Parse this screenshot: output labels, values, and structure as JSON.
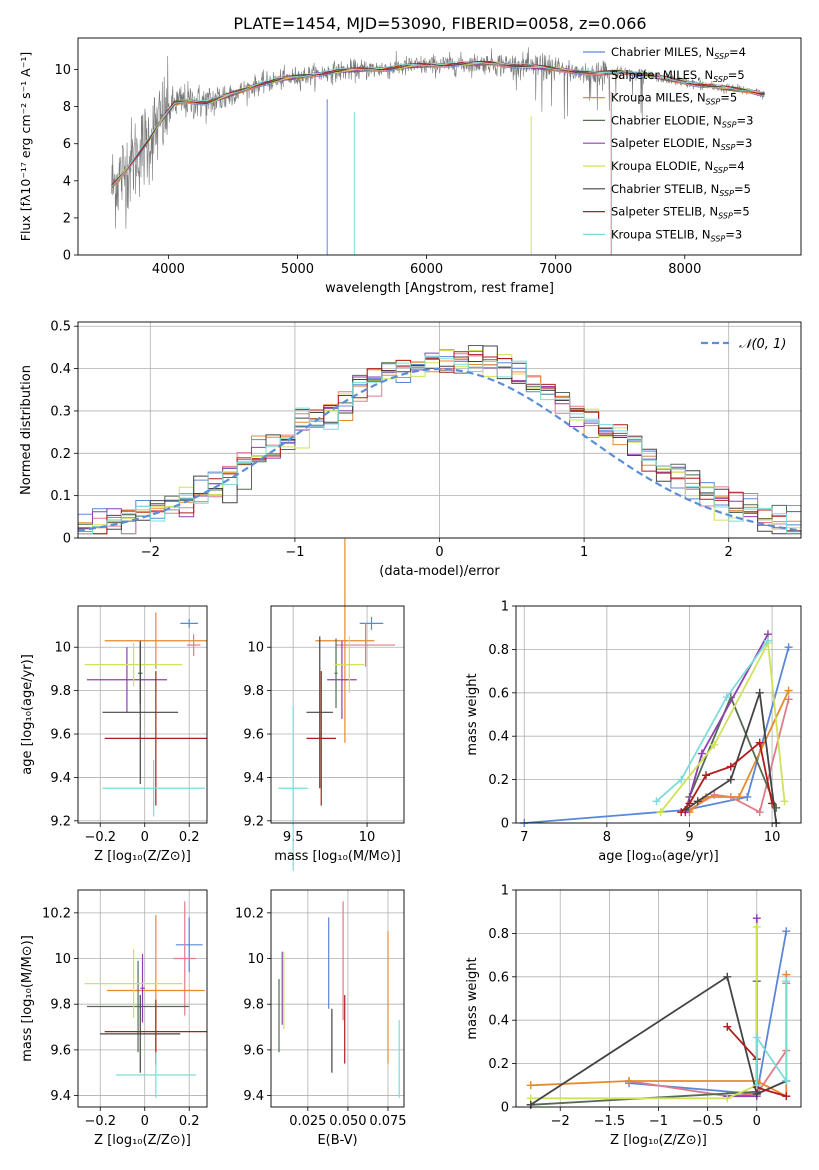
{
  "figure_title": "PLATE=1454, MJD=53090, FIBERID=0058, z=0.066",
  "colors": {
    "Chabrier MILES": "#5a87d8",
    "Salpeter MILES": "#e07b8a",
    "Kroupa MILES": "#e68a2e",
    "Chabrier ELODIE": "#556b55",
    "Salpeter ELODIE": "#8e3fb0",
    "Kroupa ELODIE": "#cfe25a",
    "Chabrier STELIB": "#444444",
    "Salpeter STELIB": "#b01c1c",
    "Kroupa STELIB": "#7fdada",
    "grid": "#b0b0b0",
    "spectrum": "#7a7a7a",
    "normal": "#5b8ed8"
  },
  "chart_data": [
    {
      "id": "spectrum",
      "type": "line",
      "xlabel": "wavelength [Angstrom, rest frame]",
      "ylabel": "Flux [fλ10⁻¹⁷ erg cm⁻² s⁻¹ A⁻¹]",
      "xlim": [
        3300,
        8900
      ],
      "ylim": [
        0,
        11.7
      ],
      "xticks": [
        4000,
        5000,
        6000,
        7000,
        8000
      ],
      "yticks": [
        0,
        2,
        4,
        6,
        8,
        10
      ],
      "grid": false,
      "legend_position": "top-right",
      "legend": [
        {
          "series": "Chabrier MILES",
          "label": "Chabrier MILES, N",
          "sub": "SSP",
          "tail": "=4"
        },
        {
          "series": "Salpeter MILES",
          "label": "Salpeter MILES, N",
          "sub": "SSP",
          "tail": "=5"
        },
        {
          "series": "Kroupa MILES",
          "label": "Kroupa MILES, N",
          "sub": "SSP",
          "tail": "=5"
        },
        {
          "series": "Chabrier ELODIE",
          "label": "Chabrier ELODIE, N",
          "sub": "SSP",
          "tail": "=3"
        },
        {
          "series": "Salpeter ELODIE",
          "label": "Salpeter ELODIE, N",
          "sub": "SSP",
          "tail": "=3"
        },
        {
          "series": "Kroupa ELODIE",
          "label": "Kroupa ELODIE, N",
          "sub": "SSP",
          "tail": "=4"
        },
        {
          "series": "Chabrier STELIB",
          "label": "Chabrier STELIB, N",
          "sub": "SSP",
          "tail": "=5"
        },
        {
          "series": "Salpeter STELIB",
          "label": "Salpeter STELIB, N",
          "sub": "SSP",
          "tail": "=5"
        },
        {
          "series": "Kroupa STELIB",
          "label": "Kroupa STELIB, N",
          "sub": "SSP",
          "tail": "=3"
        }
      ],
      "model_continuum": {
        "x": [
          3550,
          3650,
          3750,
          3850,
          3950,
          4050,
          4150,
          4300,
          4500,
          4700,
          4900,
          5100,
          5300,
          5500,
          5700,
          5900,
          6100,
          6300,
          6500,
          6700,
          6900,
          7100,
          7300,
          7500,
          7700,
          7900,
          8100,
          8300,
          8500,
          8600
        ],
        "y": [
          3.6,
          4.4,
          5.3,
          6.2,
          7.3,
          8.2,
          8.3,
          8.2,
          8.7,
          9.2,
          9.5,
          9.7,
          9.9,
          10.0,
          10.05,
          10.2,
          10.25,
          10.3,
          10.35,
          10.2,
          10.1,
          9.95,
          9.75,
          9.9,
          9.7,
          9.45,
          9.2,
          9.0,
          8.85,
          8.7
        ]
      },
      "spikes": [
        {
          "x": 5230,
          "y0": 0,
          "y1": 8.4,
          "series": "Chabrier MILES"
        },
        {
          "x": 5440,
          "y0": 0,
          "y1": 7.7,
          "series": "Kroupa STELIB"
        },
        {
          "x": 6810,
          "y0": 0,
          "y1": 7.5,
          "series": "Kroupa ELODIE"
        },
        {
          "x": 7430,
          "y0": 0,
          "y1": 8.8,
          "series": "Salpeter MILES"
        }
      ]
    },
    {
      "id": "residual_hist",
      "type": "line",
      "xlabel": "(data-model)/error",
      "ylabel": "Normed distribution",
      "xlim": [
        -2.5,
        2.5
      ],
      "ylim": [
        0,
        0.51
      ],
      "xticks": [
        -2,
        -1,
        0,
        1,
        2
      ],
      "yticks": [
        0.0,
        0.1,
        0.2,
        0.3,
        0.4,
        0.5
      ],
      "grid": true,
      "legend_position": "top-right",
      "legend": [
        {
          "label": "𝒩(0, 1)"
        }
      ],
      "bin_width": 0.1,
      "bin_start": -2.5,
      "normal_curve": {
        "mu": 0,
        "sigma": 1
      }
    },
    {
      "id": "age_vs_Z",
      "type": "scatter",
      "xlabel": "Z [log₁₀(Z/Z⊙)]",
      "ylabel": "age  [log₁₀(age/yr)]",
      "xlim": [
        -0.3,
        0.28
      ],
      "ylim": [
        9.19,
        10.19
      ],
      "xticks": [
        -0.2,
        0.0,
        0.2
      ],
      "yticks": [
        9.2,
        9.4,
        9.6,
        9.8,
        10.0
      ],
      "grid": true,
      "errorbars": [
        {
          "series": "Chabrier MILES",
          "x": 0.2,
          "xerr": 0.04,
          "y": 10.11,
          "yerr": 0.02
        },
        {
          "series": "Salpeter MILES",
          "x": 0.22,
          "xerr": 0.03,
          "y": 10.01,
          "yerr": 0.05
        },
        {
          "series": "Kroupa MILES",
          "x": 0.05,
          "xerr": 0.23,
          "y": 10.03,
          "yerr": 0.13
        },
        {
          "series": "Chabrier ELODIE",
          "x": -0.02,
          "xerr": 0.01,
          "y": 9.88,
          "yerr": 0.14
        },
        {
          "series": "Salpeter ELODIE",
          "x": -0.08,
          "xerr": 0.18,
          "y": 9.85,
          "yerr": 0.15
        },
        {
          "series": "Kroupa ELODIE",
          "x": -0.05,
          "xerr": 0.22,
          "y": 9.92,
          "yerr": 0.1
        },
        {
          "series": "Chabrier STELIB",
          "x": -0.02,
          "xerr": 0.17,
          "y": 9.7,
          "yerr": 0.33
        },
        {
          "series": "Salpeter STELIB",
          "x": 0.05,
          "xerr": 0.23,
          "y": 9.58,
          "yerr": 0.31
        },
        {
          "series": "Kroupa STELIB",
          "x": 0.04,
          "xerr": 0.23,
          "y": 9.35,
          "yerr": 0.13
        }
      ]
    },
    {
      "id": "age_vs_mass",
      "type": "scatter",
      "xlabel": "mass [log₁₀(M/M⊙)]",
      "ylabel": "",
      "xlim": [
        9.35,
        10.25
      ],
      "ylim": [
        9.19,
        10.19
      ],
      "xticks": [
        9.5,
        10.0
      ],
      "yticks": [
        9.2,
        9.4,
        9.6,
        9.8,
        10.0
      ],
      "grid": true,
      "errorbars": [
        {
          "series": "Chabrier MILES",
          "x": 10.03,
          "xerr": 0.08,
          "y": 10.11,
          "yerr": 0.03
        },
        {
          "series": "Salpeter MILES",
          "x": 9.99,
          "xerr": 0.2,
          "y": 10.01,
          "yerr": 0.1
        },
        {
          "series": "Kroupa MILES",
          "x": 9.85,
          "xerr": 0.2,
          "y": 10.03,
          "yerr": 0.47
        },
        {
          "series": "Chabrier ELODIE",
          "x": 9.79,
          "xerr": 0.01,
          "y": 9.88,
          "yerr": 0.16
        },
        {
          "series": "Salpeter ELODIE",
          "x": 9.83,
          "xerr": 0.1,
          "y": 9.85,
          "yerr": 0.18
        },
        {
          "series": "Kroupa ELODIE",
          "x": 9.88,
          "xerr": 0.1,
          "y": 9.92,
          "yerr": 0.13
        },
        {
          "series": "Chabrier STELIB",
          "x": 9.68,
          "xerr": 0.09,
          "y": 9.7,
          "yerr": 0.35
        },
        {
          "series": "Salpeter STELIB",
          "x": 9.69,
          "xerr": 0.1,
          "y": 9.58,
          "yerr": 0.31
        },
        {
          "series": "Kroupa STELIB",
          "x": 9.5,
          "xerr": 0.1,
          "y": 9.35,
          "yerr": 0.38
        }
      ]
    },
    {
      "id": "mass_weight_vs_age",
      "type": "line",
      "xlabel": "age  [log₁₀(age/yr)]",
      "ylabel": "mass weight",
      "xlim": [
        6.9,
        10.35
      ],
      "ylim": [
        0,
        1.0
      ],
      "xticks": [
        7,
        8,
        9,
        10
      ],
      "yticks": [
        0.0,
        0.2,
        0.4,
        0.6,
        0.8,
        1.0
      ],
      "grid": true,
      "series": [
        {
          "name": "Chabrier MILES",
          "x": [
            7.0,
            8.95,
            9.7,
            10.2
          ],
          "y": [
            0.0,
            0.06,
            0.12,
            0.81
          ]
        },
        {
          "name": "Salpeter MILES",
          "x": [
            8.95,
            9.3,
            9.5,
            9.85,
            10.2
          ],
          "y": [
            0.05,
            0.13,
            0.12,
            0.05,
            0.57
          ]
        },
        {
          "name": "Kroupa MILES",
          "x": [
            9.0,
            9.2,
            9.6,
            10.2
          ],
          "y": [
            0.05,
            0.12,
            0.12,
            0.61
          ]
        },
        {
          "name": "Chabrier ELODIE",
          "x": [
            9.0,
            9.5,
            10.05
          ],
          "y": [
            0.12,
            0.58,
            0.07
          ]
        },
        {
          "name": "Salpeter ELODIE",
          "x": [
            8.95,
            9.15,
            9.95
          ],
          "y": [
            0.05,
            0.32,
            0.87
          ]
        },
        {
          "name": "Kroupa ELODIE",
          "x": [
            8.65,
            9.3,
            9.95,
            10.15
          ],
          "y": [
            0.05,
            0.36,
            0.83,
            0.1
          ]
        },
        {
          "name": "Chabrier STELIB",
          "x": [
            8.95,
            9.1,
            9.5,
            9.85,
            10.05
          ],
          "y": [
            0.06,
            0.1,
            0.2,
            0.6,
            0.0
          ]
        },
        {
          "name": "Salpeter STELIB",
          "x": [
            8.9,
            9.0,
            9.2,
            9.5,
            9.85,
            10.0
          ],
          "y": [
            0.05,
            0.09,
            0.22,
            0.26,
            0.37,
            0.09
          ]
        },
        {
          "name": "Kroupa STELIB",
          "x": [
            8.6,
            8.9,
            9.45,
            9.95
          ],
          "y": [
            0.1,
            0.2,
            0.58,
            0.84
          ]
        }
      ]
    },
    {
      "id": "mass_vs_Z",
      "type": "scatter",
      "xlabel": "Z [log₁₀(Z/Z⊙)]",
      "ylabel": "mass [log₁₀(M/M⊙)]",
      "xlim": [
        -0.3,
        0.28
      ],
      "ylim": [
        9.35,
        10.3
      ],
      "xticks": [
        -0.2,
        0.0,
        0.2
      ],
      "yticks": [
        9.4,
        9.6,
        9.8,
        10.0,
        10.2
      ],
      "grid": true,
      "errorbars": [
        {
          "series": "Chabrier MILES",
          "x": 0.2,
          "xerr": 0.06,
          "y": 10.06,
          "yerr": 0.12
        },
        {
          "series": "Salpeter MILES",
          "x": 0.18,
          "xerr": 0.05,
          "y": 10.0,
          "yerr": 0.25
        },
        {
          "series": "Kroupa MILES",
          "x": 0.05,
          "xerr": 0.22,
          "y": 9.86,
          "yerr": 0.33
        },
        {
          "series": "Chabrier ELODIE",
          "x": -0.03,
          "xerr": 0.23,
          "y": 9.79,
          "yerr": 0.2
        },
        {
          "series": "Salpeter ELODIE",
          "x": -0.01,
          "xerr": 0.01,
          "y": 9.87,
          "yerr": 0.15
        },
        {
          "series": "Kroupa ELODIE",
          "x": -0.05,
          "xerr": 0.22,
          "y": 9.89,
          "yerr": 0.15
        },
        {
          "series": "Chabrier STELIB",
          "x": -0.02,
          "xerr": 0.18,
          "y": 9.67,
          "yerr": 0.17
        },
        {
          "series": "Salpeter STELIB",
          "x": 0.05,
          "xerr": 0.23,
          "y": 9.68,
          "yerr": 0.14
        },
        {
          "series": "Kroupa STELIB",
          "x": 0.05,
          "xerr": 0.18,
          "y": 9.49,
          "yerr": 0.1
        }
      ]
    },
    {
      "id": "mass_vs_EBV",
      "type": "scatter",
      "xlabel": "E(B-V)",
      "ylabel": "",
      "xlim": [
        0.002,
        0.085
      ],
      "ylim": [
        9.35,
        10.3
      ],
      "xticks": [
        0.025,
        0.05,
        0.075
      ],
      "xticklabels": [
        "0.025",
        "0.050",
        "0.075"
      ],
      "yticks": [
        9.4,
        9.6,
        9.8,
        10.0,
        10.2
      ],
      "grid": true,
      "errorbars": [
        {
          "series": "Chabrier MILES",
          "x": 0.038,
          "xerr": 0.0,
          "y": 9.98,
          "yerr": 0.2
        },
        {
          "series": "Salpeter MILES",
          "x": 0.047,
          "xerr": 0.0,
          "y": 9.99,
          "yerr": 0.26
        },
        {
          "series": "Kroupa MILES",
          "x": 0.075,
          "xerr": 0.0,
          "y": 9.83,
          "yerr": 0.29
        },
        {
          "series": "Chabrier ELODIE",
          "x": 0.007,
          "xerr": 0.0,
          "y": 9.75,
          "yerr": 0.16
        },
        {
          "series": "Salpeter ELODIE",
          "x": 0.009,
          "xerr": 0.0,
          "y": 9.87,
          "yerr": 0.16
        },
        {
          "series": "Kroupa ELODIE",
          "x": 0.01,
          "xerr": 0.0,
          "y": 9.86,
          "yerr": 0.17
        },
        {
          "series": "Chabrier STELIB",
          "x": 0.04,
          "xerr": 0.0,
          "y": 9.64,
          "yerr": 0.14
        },
        {
          "series": "Salpeter STELIB",
          "x": 0.048,
          "xerr": 0.0,
          "y": 9.69,
          "yerr": 0.15
        },
        {
          "series": "Kroupa STELIB",
          "x": 0.082,
          "xerr": 0.0,
          "y": 9.56,
          "yerr": 0.17
        }
      ]
    },
    {
      "id": "mass_weight_vs_Z",
      "type": "line",
      "xlabel": "Z [log₁₀(Z/Z⊙)]",
      "ylabel": "mass weight",
      "xlim": [
        -2.45,
        0.45
      ],
      "ylim": [
        0,
        1.0
      ],
      "xticks": [
        -2.0,
        -1.5,
        -1.0,
        -0.5,
        0.0
      ],
      "yticks": [
        0.0,
        0.2,
        0.4,
        0.6,
        0.8,
        1.0
      ],
      "grid": true,
      "series": [
        {
          "name": "Chabrier MILES",
          "x": [
            -1.3,
            0.0,
            0.3
          ],
          "y": [
            0.11,
            0.06,
            0.81
          ]
        },
        {
          "name": "Salpeter MILES",
          "x": [
            -1.3,
            -0.3,
            0.0,
            0.3,
            0.3
          ],
          "y": [
            0.12,
            0.05,
            0.06,
            0.26,
            0.57
          ]
        },
        {
          "name": "Kroupa MILES",
          "x": [
            -2.3,
            -1.3,
            0.0,
            0.3,
            0.3
          ],
          "y": [
            0.1,
            0.12,
            0.12,
            0.05,
            0.61
          ]
        },
        {
          "name": "Chabrier ELODIE",
          "x": [
            -2.3,
            0.0,
            0.0
          ],
          "y": [
            0.01,
            0.07,
            0.58
          ]
        },
        {
          "name": "Salpeter ELODIE",
          "x": [
            -0.3,
            0.0,
            0.0
          ],
          "y": [
            0.05,
            0.05,
            0.87
          ]
        },
        {
          "name": "Kroupa ELODIE",
          "x": [
            -2.3,
            -0.3,
            0.0,
            0.0
          ],
          "y": [
            0.04,
            0.04,
            0.1,
            0.83
          ]
        },
        {
          "name": "Chabrier STELIB",
          "x": [
            -2.3,
            -0.3,
            0.0,
            0.3
          ],
          "y": [
            0.01,
            0.6,
            0.06,
            0.12
          ]
        },
        {
          "name": "Salpeter STELIB",
          "x": [
            -0.3,
            0.0,
            0.0,
            0.3
          ],
          "y": [
            0.37,
            0.22,
            0.09,
            0.05
          ]
        },
        {
          "name": "Kroupa STELIB",
          "x": [
            0.0,
            0.0,
            0.3,
            0.3
          ],
          "y": [
            0.1,
            0.32,
            0.12,
            0.58
          ]
        }
      ]
    }
  ]
}
